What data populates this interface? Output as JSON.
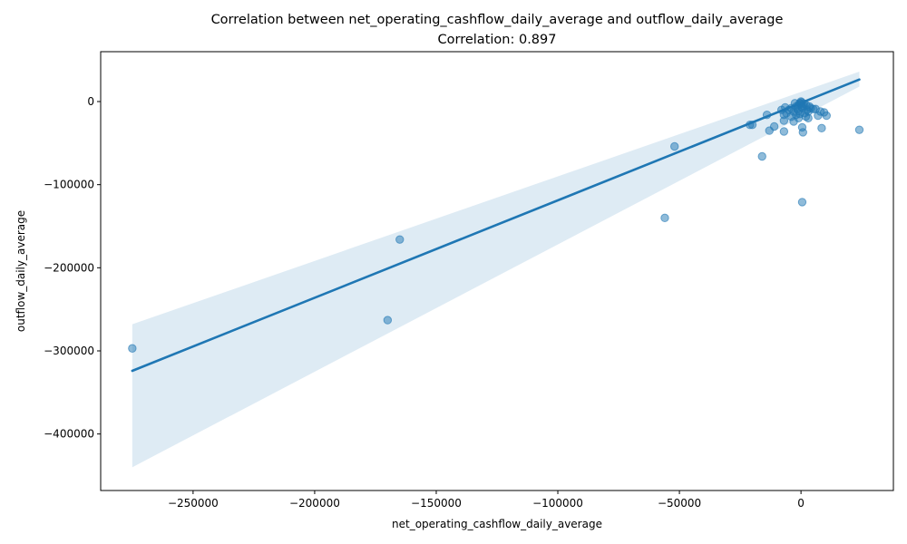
{
  "chart_data": {
    "type": "scatter",
    "title": "Correlation between net_operating_cashflow_daily_average and outflow_daily_average",
    "subtitle": "Correlation: 0.897",
    "xlabel": "net_operating_cashflow_daily_average",
    "ylabel": "outflow_daily_average",
    "xlim": [
      -288000,
      38000
    ],
    "ylim": [
      -468000,
      60000
    ],
    "xticks": [
      {
        "value": -250000,
        "label": "−250000"
      },
      {
        "value": -200000,
        "label": "−200000"
      },
      {
        "value": -150000,
        "label": "−150000"
      },
      {
        "value": -100000,
        "label": "−100000"
      },
      {
        "value": -50000,
        "label": "−50000"
      },
      {
        "value": 0,
        "label": "0"
      }
    ],
    "yticks": [
      {
        "value": 0,
        "label": "0"
      },
      {
        "value": -100000,
        "label": "−100000"
      },
      {
        "value": -200000,
        "label": "−200000"
      },
      {
        "value": -300000,
        "label": "−300000"
      },
      {
        "value": -400000,
        "label": "−400000"
      }
    ],
    "grid": false,
    "colors": {
      "points": "#1f77b4",
      "line": "#1f77b4",
      "band": "#1f77b4"
    },
    "regression_line": {
      "x": [
        -275000,
        24000
      ],
      "y": [
        -324000,
        26500
      ]
    },
    "confidence_band": {
      "x": [
        -275000,
        24000
      ],
      "upper": [
        -268000,
        36000
      ],
      "lower": [
        -440000,
        18000
      ]
    },
    "points": [
      [
        -275000,
        -297000
      ],
      [
        -170000,
        -263000
      ],
      [
        -165000,
        -166000
      ],
      [
        -56000,
        -140000
      ],
      [
        -52000,
        -54000
      ],
      [
        -16000,
        -66000
      ],
      [
        500,
        -121000
      ],
      [
        24000,
        -34000
      ],
      [
        -21000,
        -28000
      ],
      [
        -20000,
        -28000
      ],
      [
        -14000,
        -16000
      ],
      [
        -13000,
        -35000
      ],
      [
        -11000,
        -30000
      ],
      [
        -7000,
        -36000
      ],
      [
        -7000,
        -23000
      ],
      [
        -8000,
        -10000
      ],
      [
        -7000,
        -16000
      ],
      [
        -6000,
        -14000
      ],
      [
        -5000,
        -10000
      ],
      [
        -4000,
        -8000
      ],
      [
        -3000,
        -12000
      ],
      [
        -3000,
        -24000
      ],
      [
        -2000,
        -6000
      ],
      [
        -2000,
        -16000
      ],
      [
        -1000,
        -20000
      ],
      [
        -1000,
        -4000
      ],
      [
        -500,
        -2000
      ],
      [
        0,
        0
      ],
      [
        0,
        -3000
      ],
      [
        200,
        -1000
      ],
      [
        500,
        -8000
      ],
      [
        500,
        -31000
      ],
      [
        800,
        -37000
      ],
      [
        1000,
        -5000
      ],
      [
        1500,
        -14000
      ],
      [
        2000,
        -18000
      ],
      [
        2500,
        -10000
      ],
      [
        3000,
        -20000
      ],
      [
        3500,
        -6000
      ],
      [
        4000,
        -8000
      ],
      [
        5000,
        -9000
      ],
      [
        6000,
        -9000
      ],
      [
        7000,
        -17000
      ],
      [
        8000,
        -12000
      ],
      [
        8500,
        -32000
      ],
      [
        9500,
        -13000
      ],
      [
        10500,
        -17000
      ],
      [
        -4000,
        -18000
      ],
      [
        -2500,
        -2000
      ],
      [
        -1500,
        -9000
      ],
      [
        1200,
        -2500
      ],
      [
        2200,
        -4500
      ],
      [
        -6500,
        -7000
      ],
      [
        -500,
        -15000
      ],
      [
        3000,
        -12000
      ],
      [
        -1000,
        -11000
      ],
      [
        300,
        -6000
      ]
    ]
  }
}
